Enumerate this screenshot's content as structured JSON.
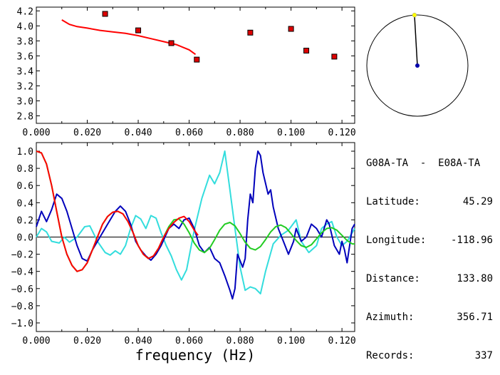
{
  "station_pair": "G08A-TA  -  E08A-TA",
  "info": [
    {
      "label": "Latitude:",
      "value": "45.29"
    },
    {
      "label": "Longitude:",
      "value": "-118.96"
    },
    {
      "label": "Distance:",
      "value": "133.80"
    },
    {
      "label": "Azimuth:",
      "value": "356.71"
    },
    {
      "label": "Records:",
      "value": "337"
    }
  ],
  "xlabel": "frequency (Hz)",
  "azimuth_deg": 356.71,
  "colors": {
    "red": "#ff0000",
    "blue": "#0000bb",
    "cyan": "#33dddd",
    "green": "#22cc22",
    "marker": "#dd0000",
    "dot_top": "#ffff00",
    "dot_center": "#0000aa"
  },
  "chart_data": [
    {
      "type": "scatter",
      "xlim": [
        0.0,
        0.125
      ],
      "ylim": [
        2.7,
        4.25
      ],
      "x_ticks": [
        "0.000",
        "0.020",
        "0.040",
        "0.060",
        "0.080",
        "0.100",
        "0.120"
      ],
      "y_ticks": [
        "2.8",
        "3.0",
        "3.2",
        "3.4",
        "3.6",
        "3.8",
        "4.0",
        "4.2"
      ],
      "points": [
        [
          0.027,
          4.16
        ],
        [
          0.04,
          3.94
        ],
        [
          0.053,
          3.77
        ],
        [
          0.063,
          3.55
        ],
        [
          0.084,
          3.91
        ],
        [
          0.1,
          3.96
        ],
        [
          0.106,
          3.67
        ],
        [
          0.117,
          3.59
        ]
      ],
      "fit_curve": [
        [
          0.01,
          4.08
        ],
        [
          0.013,
          4.02
        ],
        [
          0.016,
          3.99
        ],
        [
          0.02,
          3.97
        ],
        [
          0.025,
          3.94
        ],
        [
          0.03,
          3.92
        ],
        [
          0.035,
          3.9
        ],
        [
          0.04,
          3.87
        ],
        [
          0.045,
          3.83
        ],
        [
          0.05,
          3.79
        ],
        [
          0.055,
          3.75
        ],
        [
          0.06,
          3.68
        ],
        [
          0.0625,
          3.62
        ]
      ]
    },
    {
      "type": "line",
      "xlim": [
        0.0,
        0.125
      ],
      "ylim": [
        -1.1,
        1.1
      ],
      "x_ticks": [
        "0.000",
        "0.020",
        "0.040",
        "0.060",
        "0.080",
        "0.100",
        "0.120"
      ],
      "y_ticks": [
        "-1.0",
        "-0.8",
        "-0.6",
        "-0.4",
        "-0.2",
        "0.0",
        "0.2",
        "0.4",
        "0.6",
        "0.8",
        "1.0"
      ],
      "series": [
        {
          "color": "#33dddd",
          "points": [
            [
              0.0,
              0.0
            ],
            [
              0.002,
              0.1
            ],
            [
              0.004,
              0.06
            ],
            [
              0.006,
              -0.05
            ],
            [
              0.009,
              -0.07
            ],
            [
              0.011,
              0.0
            ],
            [
              0.013,
              -0.06
            ],
            [
              0.016,
              0.0
            ],
            [
              0.019,
              0.12
            ],
            [
              0.021,
              0.13
            ],
            [
              0.024,
              -0.05
            ],
            [
              0.027,
              -0.18
            ],
            [
              0.029,
              -0.21
            ],
            [
              0.031,
              -0.16
            ],
            [
              0.033,
              -0.2
            ],
            [
              0.035,
              -0.1
            ],
            [
              0.037,
              0.1
            ],
            [
              0.039,
              0.25
            ],
            [
              0.041,
              0.21
            ],
            [
              0.043,
              0.1
            ],
            [
              0.045,
              0.25
            ],
            [
              0.047,
              0.22
            ],
            [
              0.049,
              0.05
            ],
            [
              0.051,
              -0.1
            ],
            [
              0.053,
              -0.22
            ],
            [
              0.055,
              -0.38
            ],
            [
              0.057,
              -0.5
            ],
            [
              0.059,
              -0.38
            ],
            [
              0.062,
              0.08
            ],
            [
              0.065,
              0.45
            ],
            [
              0.068,
              0.72
            ],
            [
              0.07,
              0.62
            ],
            [
              0.072,
              0.75
            ],
            [
              0.074,
              1.0
            ],
            [
              0.076,
              0.55
            ],
            [
              0.078,
              0.1
            ],
            [
              0.08,
              -0.35
            ],
            [
              0.082,
              -0.62
            ],
            [
              0.084,
              -0.58
            ],
            [
              0.086,
              -0.6
            ],
            [
              0.088,
              -0.66
            ],
            [
              0.09,
              -0.4
            ],
            [
              0.093,
              -0.08
            ],
            [
              0.096,
              0.02
            ],
            [
              0.099,
              0.08
            ],
            [
              0.102,
              0.2
            ],
            [
              0.104,
              -0.05
            ],
            [
              0.107,
              -0.18
            ],
            [
              0.11,
              -0.1
            ],
            [
              0.112,
              0.1
            ],
            [
              0.114,
              0.15
            ],
            [
              0.116,
              0.18
            ],
            [
              0.118,
              0.0
            ],
            [
              0.12,
              -0.1
            ],
            [
              0.122,
              -0.05
            ],
            [
              0.125,
              0.1
            ]
          ]
        },
        {
          "color": "#0000bb",
          "points": [
            [
              0.0,
              0.12
            ],
            [
              0.002,
              0.3
            ],
            [
              0.004,
              0.18
            ],
            [
              0.006,
              0.32
            ],
            [
              0.008,
              0.5
            ],
            [
              0.01,
              0.45
            ],
            [
              0.012,
              0.3
            ],
            [
              0.014,
              0.1
            ],
            [
              0.016,
              -0.1
            ],
            [
              0.018,
              -0.25
            ],
            [
              0.02,
              -0.28
            ],
            [
              0.022,
              -0.15
            ],
            [
              0.025,
              0.0
            ],
            [
              0.028,
              0.15
            ],
            [
              0.031,
              0.3
            ],
            [
              0.033,
              0.36
            ],
            [
              0.035,
              0.3
            ],
            [
              0.037,
              0.15
            ],
            [
              0.039,
              -0.05
            ],
            [
              0.041,
              -0.15
            ],
            [
              0.043,
              -0.22
            ],
            [
              0.045,
              -0.27
            ],
            [
              0.047,
              -0.2
            ],
            [
              0.049,
              -0.1
            ],
            [
              0.052,
              0.1
            ],
            [
              0.054,
              0.15
            ],
            [
              0.056,
              0.1
            ],
            [
              0.058,
              0.2
            ],
            [
              0.06,
              0.22
            ],
            [
              0.062,
              0.1
            ],
            [
              0.064,
              -0.1
            ],
            [
              0.066,
              -0.18
            ],
            [
              0.068,
              -0.12
            ],
            [
              0.07,
              -0.25
            ],
            [
              0.072,
              -0.3
            ],
            [
              0.074,
              -0.45
            ],
            [
              0.076,
              -0.62
            ],
            [
              0.077,
              -0.72
            ],
            [
              0.078,
              -0.6
            ],
            [
              0.079,
              -0.2
            ],
            [
              0.081,
              -0.35
            ],
            [
              0.082,
              -0.25
            ],
            [
              0.083,
              0.2
            ],
            [
              0.084,
              0.5
            ],
            [
              0.085,
              0.4
            ],
            [
              0.086,
              0.8
            ],
            [
              0.087,
              1.0
            ],
            [
              0.088,
              0.95
            ],
            [
              0.089,
              0.75
            ],
            [
              0.091,
              0.5
            ],
            [
              0.092,
              0.55
            ],
            [
              0.093,
              0.35
            ],
            [
              0.095,
              0.1
            ],
            [
              0.097,
              -0.05
            ],
            [
              0.099,
              -0.2
            ],
            [
              0.101,
              -0.05
            ],
            [
              0.102,
              0.1
            ],
            [
              0.104,
              -0.05
            ],
            [
              0.106,
              0.0
            ],
            [
              0.108,
              0.15
            ],
            [
              0.11,
              0.1
            ],
            [
              0.112,
              0.0
            ],
            [
              0.114,
              0.2
            ],
            [
              0.115,
              0.15
            ],
            [
              0.117,
              -0.1
            ],
            [
              0.119,
              -0.2
            ],
            [
              0.12,
              -0.05
            ],
            [
              0.121,
              -0.15
            ],
            [
              0.122,
              -0.3
            ],
            [
              0.124,
              0.1
            ],
            [
              0.125,
              0.15
            ]
          ]
        },
        {
          "color": "#22cc22",
          "points": [
            [
              0.0,
              1.0
            ],
            [
              0.002,
              0.98
            ],
            [
              0.004,
              0.85
            ],
            [
              0.006,
              0.6
            ],
            [
              0.008,
              0.3
            ],
            [
              0.01,
              0.0
            ],
            [
              0.012,
              -0.2
            ],
            [
              0.014,
              -0.33
            ],
            [
              0.016,
              -0.4
            ],
            [
              0.018,
              -0.38
            ],
            [
              0.02,
              -0.3
            ],
            [
              0.022,
              -0.15
            ],
            [
              0.024,
              0.0
            ],
            [
              0.026,
              0.15
            ],
            [
              0.028,
              0.24
            ],
            [
              0.03,
              0.29
            ],
            [
              0.032,
              0.3
            ],
            [
              0.034,
              0.27
            ],
            [
              0.036,
              0.18
            ],
            [
              0.038,
              0.05
            ],
            [
              0.04,
              -0.1
            ],
            [
              0.042,
              -0.2
            ],
            [
              0.044,
              -0.25
            ],
            [
              0.046,
              -0.22
            ],
            [
              0.048,
              -0.13
            ],
            [
              0.05,
              0.0
            ],
            [
              0.052,
              0.12
            ],
            [
              0.054,
              0.2
            ],
            [
              0.056,
              0.21
            ],
            [
              0.058,
              0.15
            ],
            [
              0.06,
              0.05
            ],
            [
              0.062,
              -0.07
            ],
            [
              0.064,
              -0.15
            ],
            [
              0.066,
              -0.18
            ],
            [
              0.068,
              -0.13
            ],
            [
              0.07,
              -0.03
            ],
            [
              0.072,
              0.08
            ],
            [
              0.074,
              0.15
            ],
            [
              0.076,
              0.17
            ],
            [
              0.078,
              0.13
            ],
            [
              0.08,
              0.04
            ],
            [
              0.082,
              -0.06
            ],
            [
              0.084,
              -0.13
            ],
            [
              0.086,
              -0.15
            ],
            [
              0.088,
              -0.11
            ],
            [
              0.09,
              -0.03
            ],
            [
              0.092,
              0.06
            ],
            [
              0.094,
              0.12
            ],
            [
              0.096,
              0.14
            ],
            [
              0.098,
              0.11
            ],
            [
              0.1,
              0.04
            ],
            [
              0.102,
              -0.04
            ],
            [
              0.104,
              -0.1
            ],
            [
              0.106,
              -0.12
            ],
            [
              0.108,
              -0.09
            ],
            [
              0.11,
              -0.02
            ],
            [
              0.112,
              0.05
            ],
            [
              0.114,
              0.1
            ],
            [
              0.116,
              0.11
            ],
            [
              0.118,
              0.08
            ],
            [
              0.12,
              0.02
            ],
            [
              0.122,
              -0.04
            ],
            [
              0.124,
              -0.08
            ],
            [
              0.125,
              -0.08
            ]
          ]
        },
        {
          "color": "#ff0000",
          "points": [
            [
              0.0,
              1.0
            ],
            [
              0.002,
              0.98
            ],
            [
              0.004,
              0.85
            ],
            [
              0.006,
              0.6
            ],
            [
              0.008,
              0.3
            ],
            [
              0.01,
              0.0
            ],
            [
              0.012,
              -0.2
            ],
            [
              0.014,
              -0.33
            ],
            [
              0.016,
              -0.4
            ],
            [
              0.018,
              -0.38
            ],
            [
              0.02,
              -0.3
            ],
            [
              0.022,
              -0.15
            ],
            [
              0.024,
              0.0
            ],
            [
              0.026,
              0.15
            ],
            [
              0.028,
              0.24
            ],
            [
              0.03,
              0.29
            ],
            [
              0.032,
              0.3
            ],
            [
              0.034,
              0.27
            ],
            [
              0.036,
              0.18
            ],
            [
              0.038,
              0.05
            ],
            [
              0.04,
              -0.1
            ],
            [
              0.042,
              -0.2
            ],
            [
              0.044,
              -0.25
            ],
            [
              0.046,
              -0.22
            ],
            [
              0.048,
              -0.13
            ],
            [
              0.05,
              0.0
            ],
            [
              0.052,
              0.1
            ],
            [
              0.054,
              0.17
            ],
            [
              0.056,
              0.22
            ],
            [
              0.058,
              0.24
            ],
            [
              0.06,
              0.18
            ],
            [
              0.062,
              0.08
            ],
            [
              0.0635,
              0.02
            ]
          ]
        }
      ]
    }
  ]
}
